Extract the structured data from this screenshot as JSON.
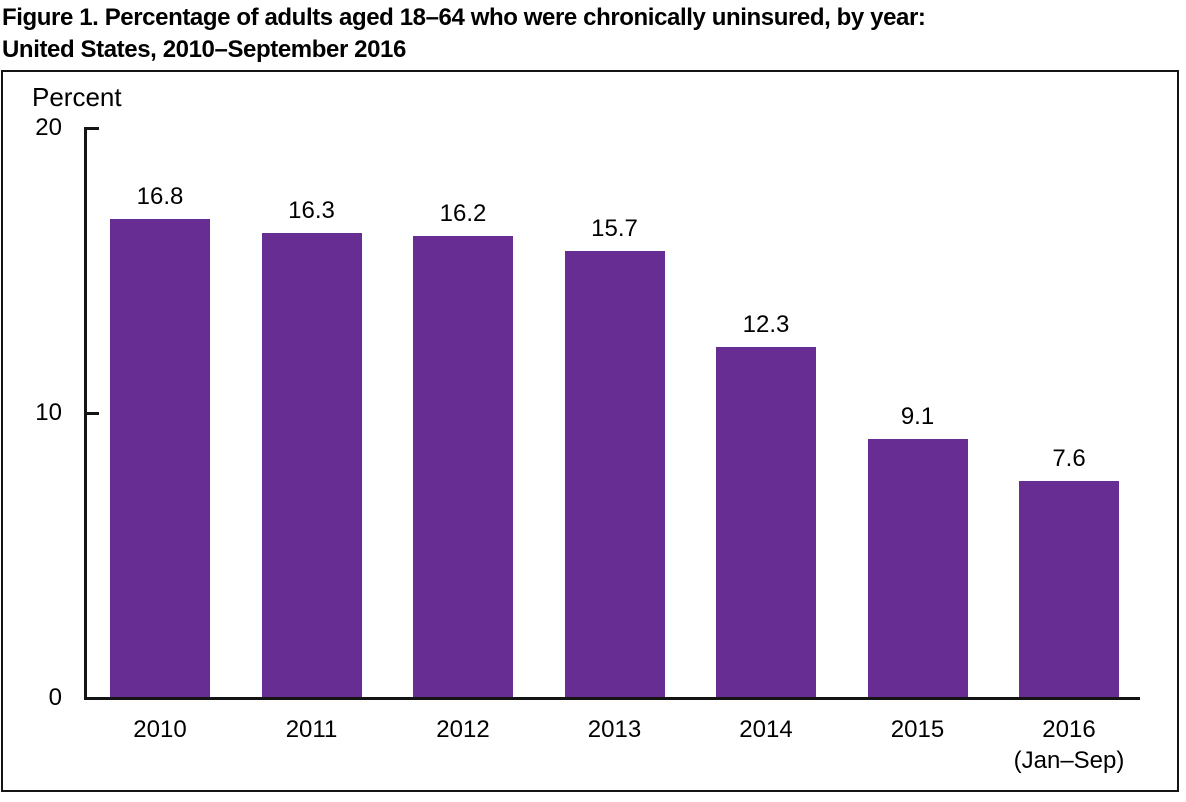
{
  "figure": {
    "title_line1": "Figure 1. Percentage of adults aged 18–64 who were chronically uninsured, by year:",
    "title_line2": "United States, 2010–September 2016"
  },
  "chart_data": {
    "type": "bar",
    "title": "Figure 1. Percentage of adults aged 18–64 who were chronically uninsured, by year: United States, 2010–September 2016",
    "categories": [
      "2010",
      "2011",
      "2012",
      "2013",
      "2014",
      "2015",
      "2016\n(Jan–Sep)"
    ],
    "values": [
      16.8,
      16.3,
      16.2,
      15.7,
      12.3,
      9.1,
      7.6
    ],
    "data_labels": [
      "16.8",
      "16.3",
      "16.2",
      "15.7",
      "12.3",
      "9.1",
      "7.6"
    ],
    "xlabel": "",
    "ylabel": "Percent",
    "ylim": [
      0,
      20
    ],
    "yticks": [
      "0",
      "10",
      "20"
    ],
    "grid": false,
    "legend": false,
    "bar_color": "#682D92",
    "axis_color": "#141414",
    "text_color": "#000000"
  }
}
